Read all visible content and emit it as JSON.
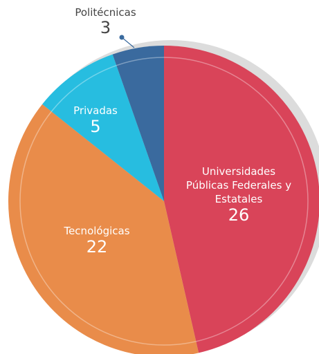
{
  "chart_data": {
    "type": "pie",
    "categories": [
      "Universidades Públicas Federales y Estatales",
      "Tecnológicas",
      "Privadas",
      "Politécnicas"
    ],
    "values": [
      26,
      22,
      5,
      3
    ],
    "colors": [
      "#d94459",
      "#e98c4a",
      "#27bde0",
      "#3a6a9e"
    ]
  }
}
